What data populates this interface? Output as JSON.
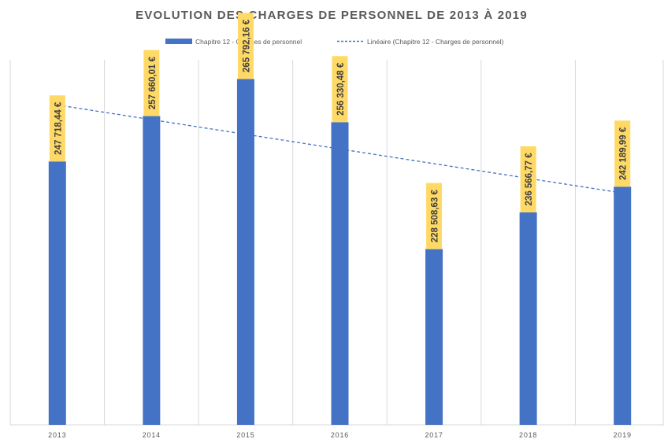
{
  "chart_data": {
    "type": "bar",
    "title": "EVOLUTION DES CHARGES DE PERSONNEL DE 2013 À 2019",
    "categories": [
      "2013",
      "2014",
      "2015",
      "2016",
      "2017",
      "2018",
      "2019"
    ],
    "series": [
      {
        "name": "Chapitre 12 - Charges de personnel",
        "values": [
          247718.44,
          257660.01,
          265792.16,
          256330.48,
          228508.63,
          236566.77,
          242189.99
        ],
        "labels": [
          "247 718,44 €",
          "257 660,01 €",
          "265 792,16 €",
          "256 330,48 €",
          "228 508,63 €",
          "236 566,77 €",
          "242 189,99 €"
        ]
      }
    ],
    "trendline": {
      "name": "Linéaire (Chapitre 12 - Charges de personnel)",
      "type": "linear",
      "start": 260100,
      "end": 240800
    },
    "ylim": [
      190000,
      270000
    ],
    "grid": "vertical",
    "legend_position": "top",
    "colors": {
      "bar": "#4472c4",
      "trend": "#4472c4",
      "label_background": "#ffd966",
      "grid": "#d9d9d9",
      "title": "#595959",
      "text": "#595959"
    }
  }
}
